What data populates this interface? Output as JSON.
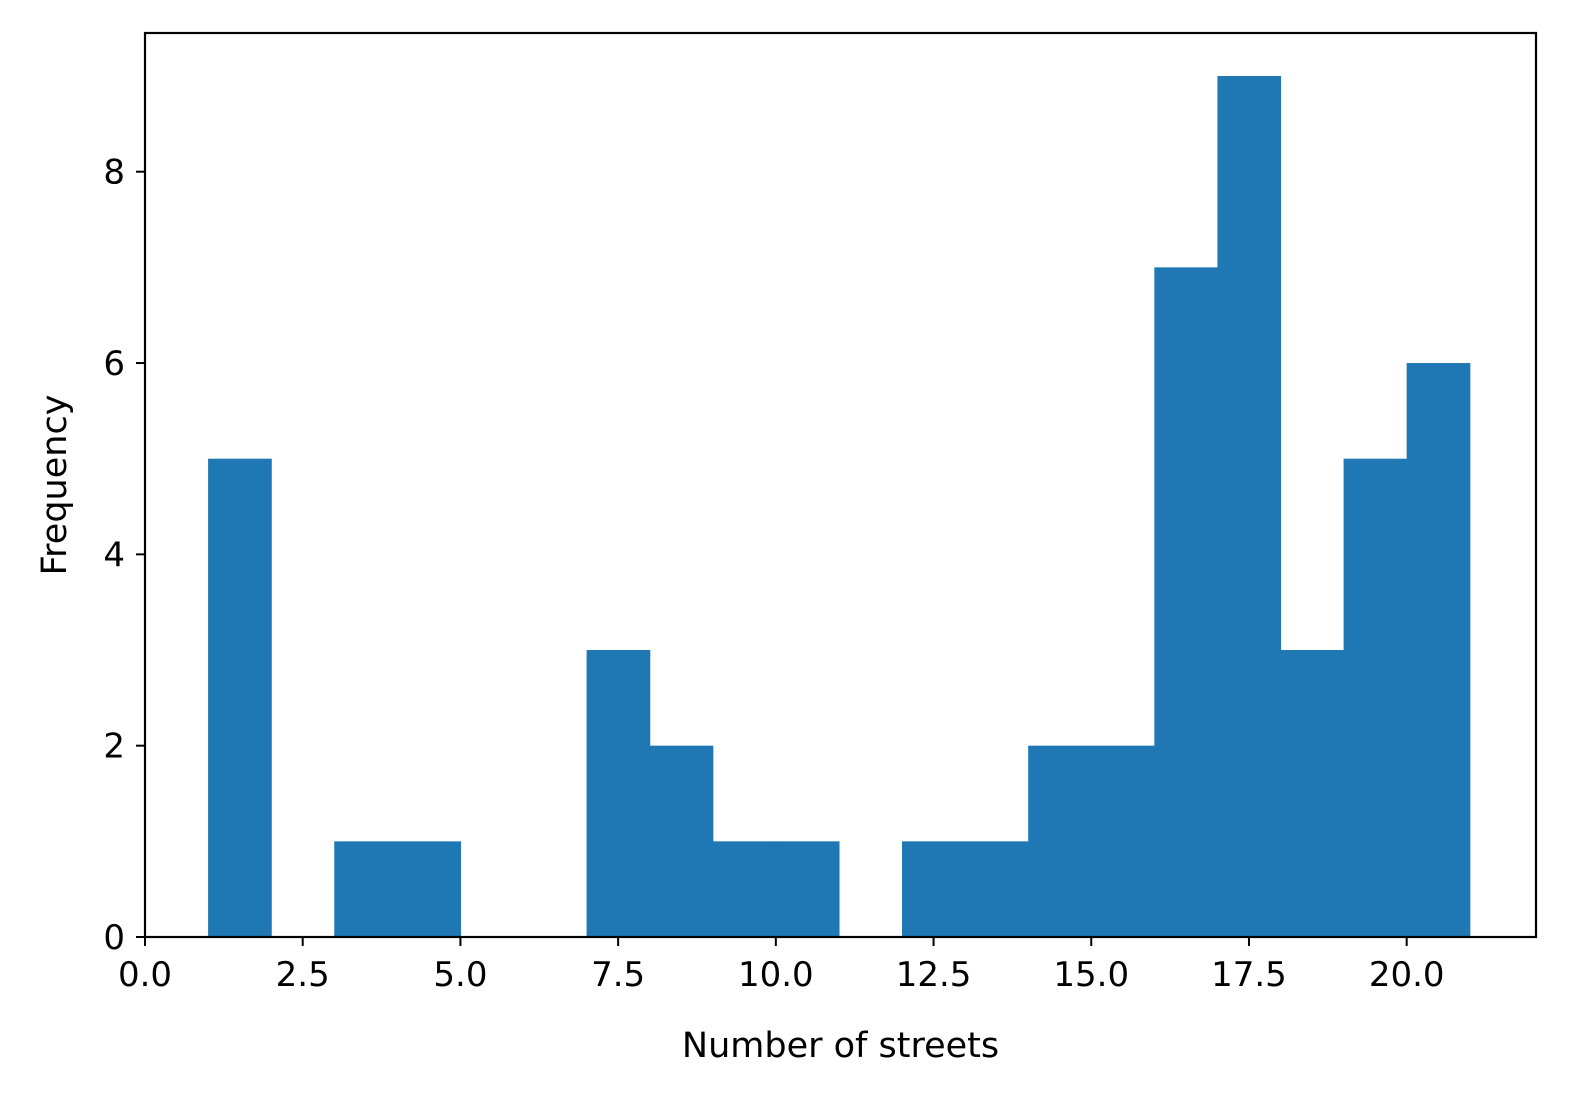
{
  "chart_data": {
    "type": "bar",
    "histogram": true,
    "bin_width": 1,
    "bins": [
      {
        "x0": 1,
        "x1": 2,
        "count": 5
      },
      {
        "x0": 2,
        "x1": 3,
        "count": 0
      },
      {
        "x0": 3,
        "x1": 4,
        "count": 1
      },
      {
        "x0": 4,
        "x1": 5,
        "count": 1
      },
      {
        "x0": 5,
        "x1": 6,
        "count": 0
      },
      {
        "x0": 6,
        "x1": 7,
        "count": 0
      },
      {
        "x0": 7,
        "x1": 8,
        "count": 3
      },
      {
        "x0": 8,
        "x1": 9,
        "count": 2
      },
      {
        "x0": 9,
        "x1": 10,
        "count": 1
      },
      {
        "x0": 10,
        "x1": 11,
        "count": 1
      },
      {
        "x0": 11,
        "x1": 12,
        "count": 0
      },
      {
        "x0": 12,
        "x1": 13,
        "count": 1
      },
      {
        "x0": 13,
        "x1": 14,
        "count": 1
      },
      {
        "x0": 14,
        "x1": 15,
        "count": 2
      },
      {
        "x0": 15,
        "x1": 16,
        "count": 2
      },
      {
        "x0": 16,
        "x1": 17,
        "count": 7
      },
      {
        "x0": 17,
        "x1": 18,
        "count": 9
      },
      {
        "x0": 18,
        "x1": 19,
        "count": 3
      },
      {
        "x0": 19,
        "x1": 20,
        "count": 5
      },
      {
        "x0": 20,
        "x1": 21,
        "count": 6
      }
    ],
    "xlabel": "Number of streets",
    "ylabel": "Frequency",
    "xlim": [
      0,
      22.05
    ],
    "ylim": [
      0,
      9.45
    ],
    "xticks": [
      0,
      2.5,
      5,
      7.5,
      10,
      12.5,
      15,
      17.5,
      20
    ],
    "xtick_labels": [
      "0.0",
      "2.5",
      "5.0",
      "7.5",
      "10.0",
      "12.5",
      "15.0",
      "17.5",
      "20.0"
    ],
    "yticks": [
      0,
      2,
      4,
      6,
      8
    ],
    "ytick_labels": [
      "0",
      "2",
      "4",
      "6",
      "8"
    ],
    "bar_color": "#1f77b4",
    "grid": false,
    "legend": "none"
  }
}
